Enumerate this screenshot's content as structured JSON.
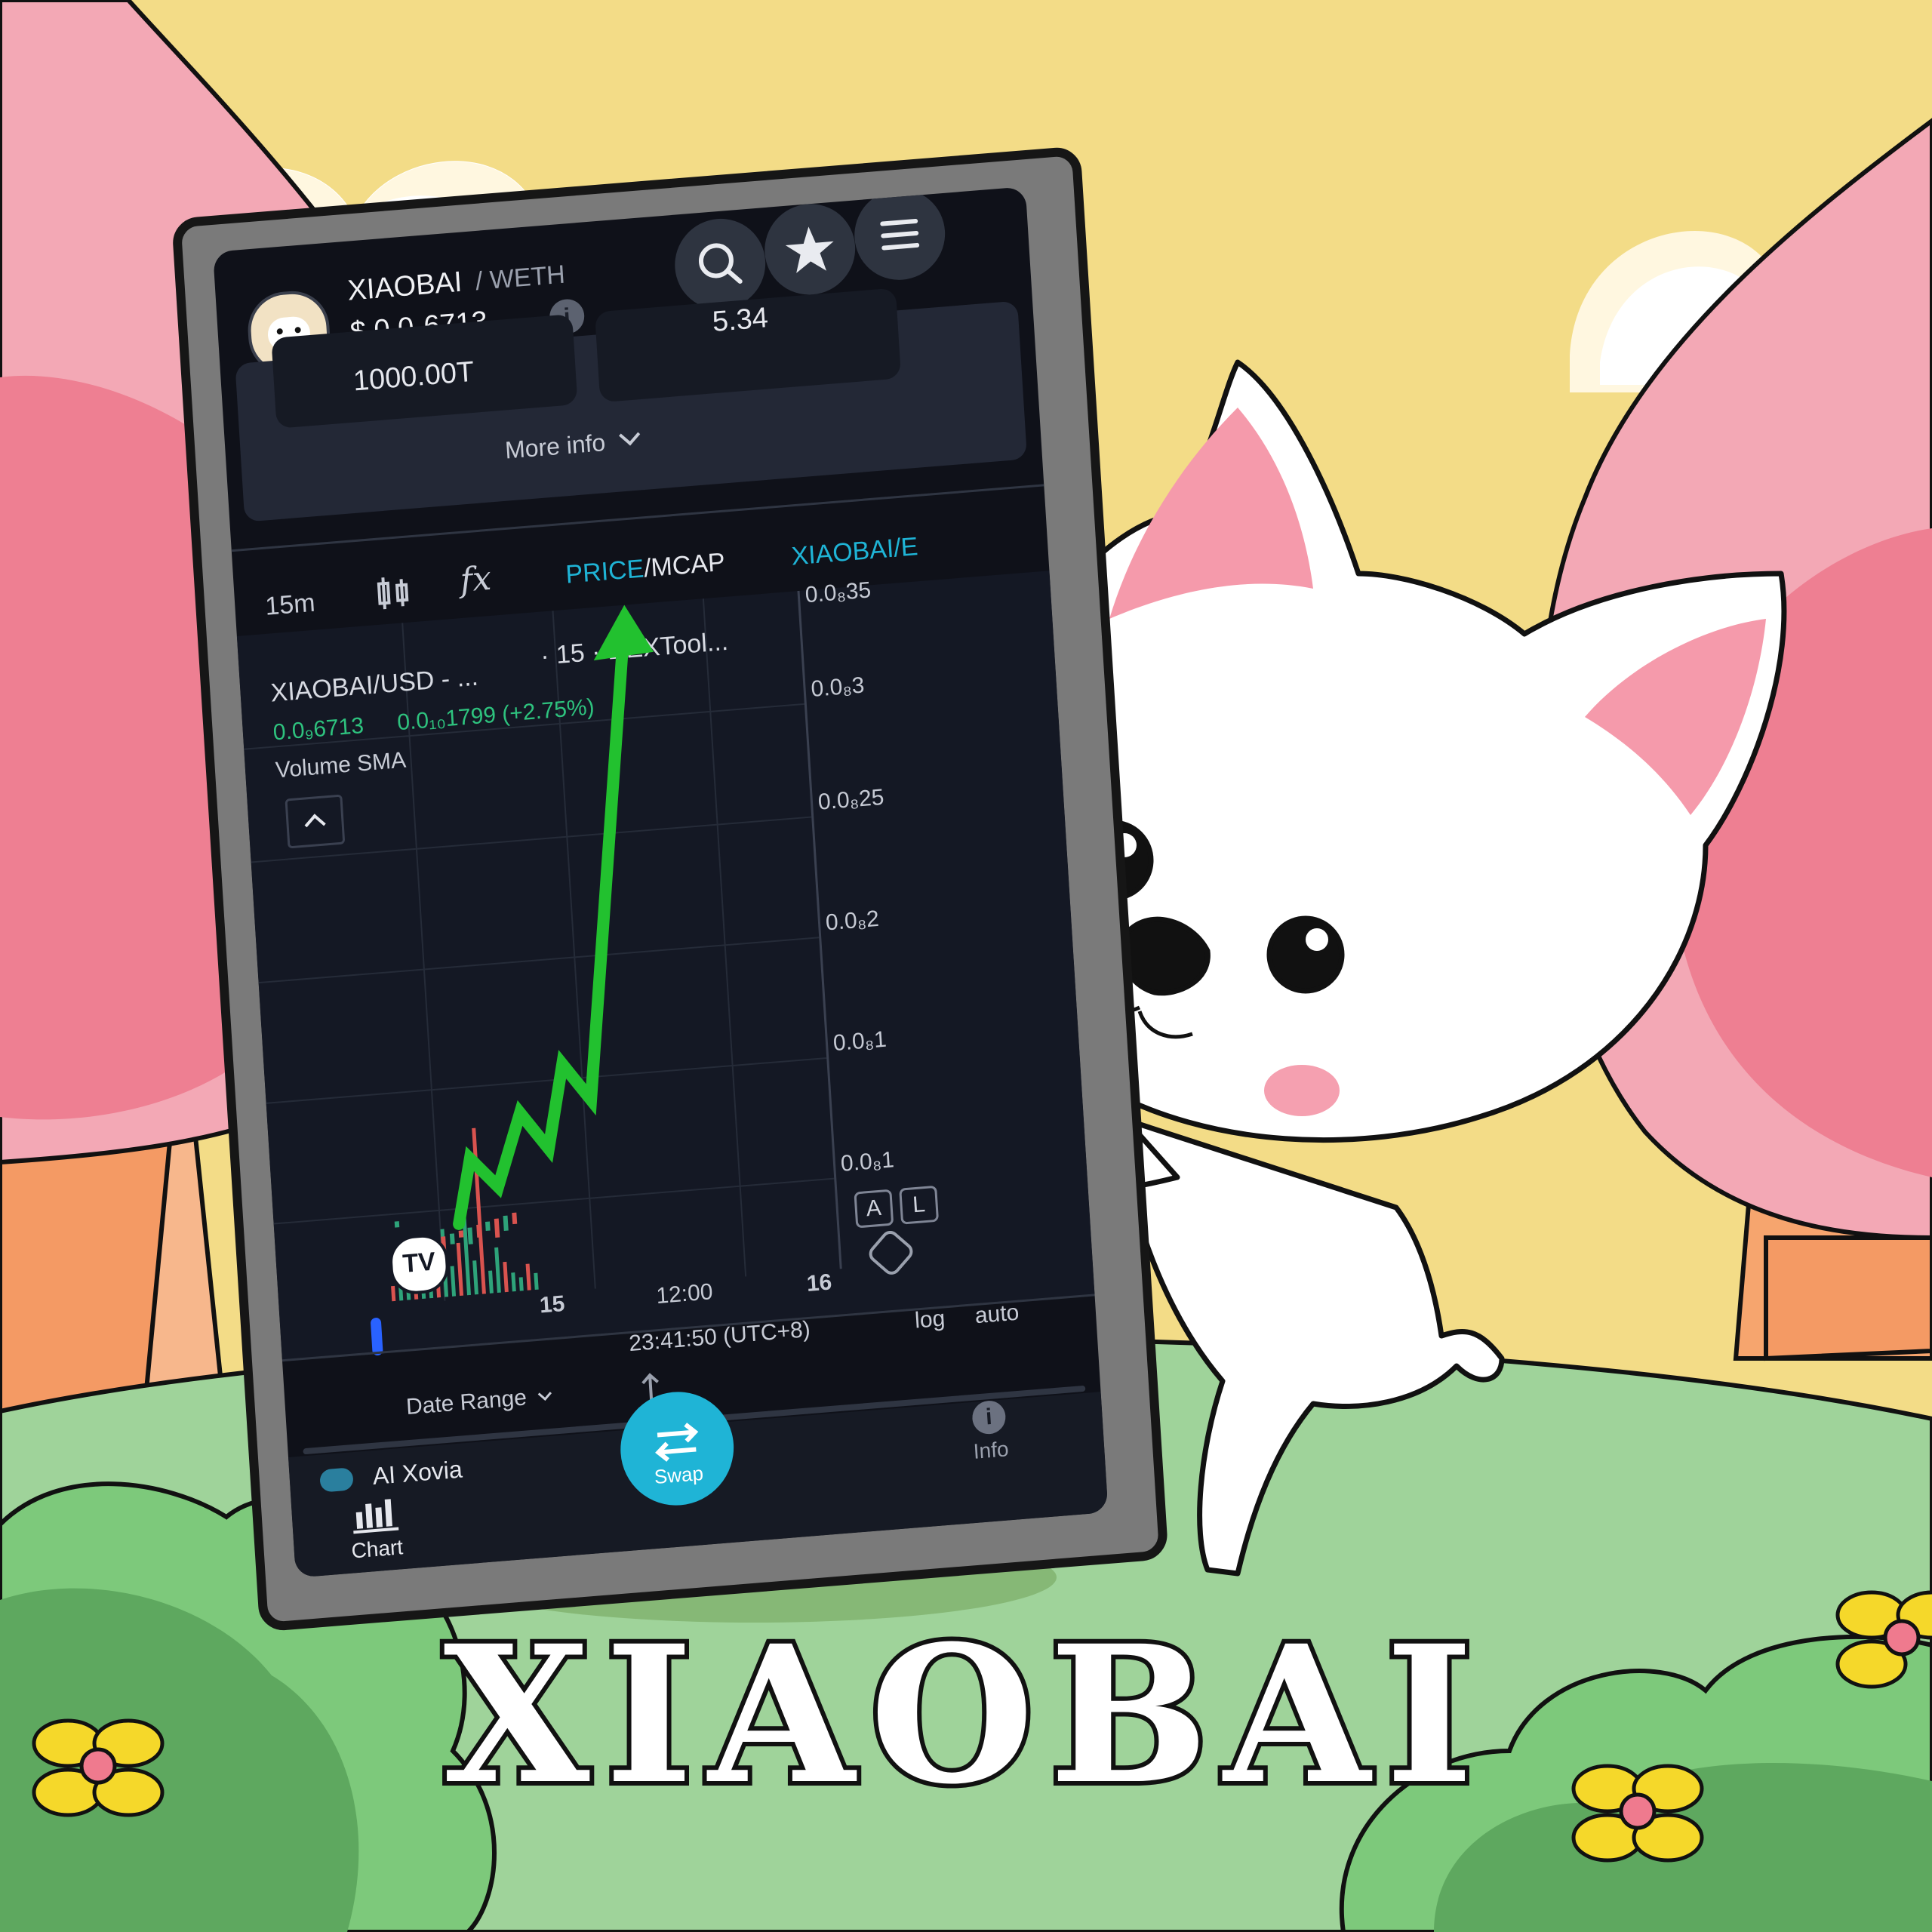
{
  "title": "XIAOBAI",
  "phone": {
    "header": {
      "pair_base": "XIAOBAI",
      "pair_quote": "/ WETH",
      "price_prefix": "$",
      "price_main": "0.0",
      "price_sub": "9",
      "price_tail": "6713",
      "stat_left": "1000.00T",
      "stat_right": "5.34",
      "more_info": "More info"
    },
    "toolbar": {
      "interval": "15m",
      "price_label": "PRICE",
      "mcap_label": "/MCAP",
      "pair_link": "XIAOBAI/E"
    },
    "chart": {
      "legend_symbol": "XIAOBAI/USD - ...",
      "legend_source": "· 15 · DEXTool...",
      "legend_open": "0.0₉6713",
      "legend_change": "0.0₁₀1799 (+2.75%)",
      "volume_label": "Volume SMA",
      "y_ticks": [
        "0.0₈35",
        "0.0₈3",
        "0.0₈25",
        "0.0₈2",
        "0.0₈1",
        "0.0₈1"
      ],
      "x_ticks": [
        "15",
        "12:00",
        "16"
      ],
      "scale_a": "A",
      "scale_l": "L",
      "time": "23:41:50 (UTC+8)",
      "log": "log",
      "auto": "auto",
      "date_range": "Date Range",
      "logo_text": "TV"
    },
    "bottom": {
      "ad_text": "AI Xovia",
      "swap": "Swap",
      "chart": "Chart",
      "info": "Info"
    },
    "colors": {
      "accent": "#1fb4d6",
      "up": "#2ec27e",
      "arrow": "#22c12f"
    }
  },
  "chart_data": {
    "type": "line",
    "title": "",
    "xlabel": "",
    "ylabel": "",
    "x": [
      "15",
      "12:00",
      "16"
    ],
    "series": [
      {
        "values": [
          6.7e-09,
          6.7e-09,
          6.8e-09
        ]
      }
    ],
    "ylim": [
      1e-08,
      3.5e-08
    ]
  }
}
